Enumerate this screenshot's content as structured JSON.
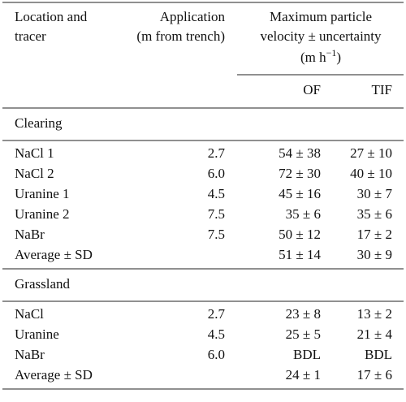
{
  "header": {
    "location": [
      "Location and",
      "tracer"
    ],
    "application": [
      "Application",
      "(m from trench)"
    ],
    "velocity": [
      "Maximum particle",
      "velocity ± uncertainty"
    ],
    "unit": {
      "prefix": "(m h",
      "exponent": "−1",
      "suffix": ")"
    },
    "of": "OF",
    "tif": "TIF"
  },
  "sections": [
    {
      "title": "Clearing",
      "rows": [
        {
          "tracer": "NaCl 1",
          "application": "2.7",
          "of": "54 ± 38",
          "tif": "27 ± 10"
        },
        {
          "tracer": "NaCl 2",
          "application": "6.0",
          "of": "72 ± 30",
          "tif": "40 ± 10"
        },
        {
          "tracer": "Uranine 1",
          "application": "4.5",
          "of": "45 ± 16",
          "tif": "30 ± 7"
        },
        {
          "tracer": "Uranine 2",
          "application": "7.5",
          "of": "35 ± 6",
          "tif": "35 ± 6"
        },
        {
          "tracer": "NaBr",
          "application": "7.5",
          "of": "50 ± 12",
          "tif": "17 ± 2"
        },
        {
          "tracer": "Average ± SD",
          "of": "51 ± 14",
          "tif": "30 ± 9"
        }
      ]
    },
    {
      "title": "Grassland",
      "rows": [
        {
          "tracer": "NaCl",
          "application": "2.7",
          "of": "23 ± 8",
          "tif": "13 ± 2"
        },
        {
          "tracer": "Uranine",
          "application": "4.5",
          "of": "25 ± 5",
          "tif": "21 ± 4"
        },
        {
          "tracer": "NaBr",
          "application": "6.0",
          "of": "BDL",
          "tif": "BDL"
        },
        {
          "tracer": "Average ± SD",
          "of": "24 ± 1",
          "tif": "17 ± 6"
        }
      ]
    }
  ]
}
